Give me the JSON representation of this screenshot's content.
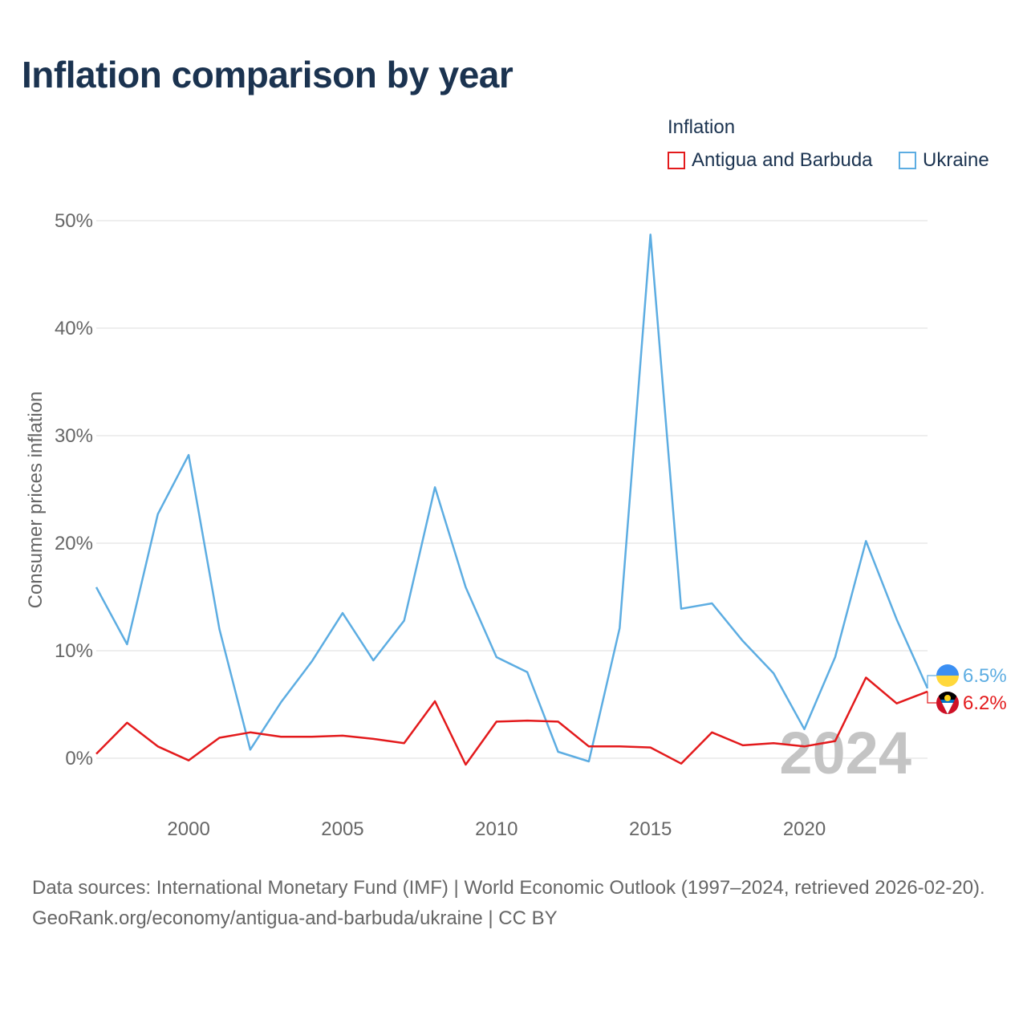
{
  "title": "Inflation comparison by year",
  "legend": {
    "title": "Inflation",
    "items": [
      {
        "label": "Antigua and Barbuda",
        "color": "#e31a1c"
      },
      {
        "label": "Ukraine",
        "color": "#5dade2"
      }
    ]
  },
  "watermark_year": "2024",
  "source": {
    "line1": "Data sources: International Monetary Fund (IMF) | World Economic Outlook (1997–2024, retrieved 2026-02-20).",
    "line2": "GeoRank.org/economy/antigua-and-barbuda/ukraine | CC BY"
  },
  "chart_data": {
    "type": "line",
    "title": "Inflation comparison by year",
    "xlabel": "",
    "ylabel": "Consumer prices inflation",
    "xlim": [
      1997,
      2024
    ],
    "ylim": [
      0,
      50
    ],
    "x_ticks": [
      2000,
      2005,
      2010,
      2015,
      2020
    ],
    "x_tick_labels": [
      "2000",
      "2005",
      "2010",
      "2015",
      "2020"
    ],
    "y_ticks": [
      0,
      10,
      20,
      30,
      40,
      50
    ],
    "y_tick_labels": [
      "0%",
      "10%",
      "20%",
      "30%",
      "40%",
      "50%"
    ],
    "grid": true,
    "x": [
      1997,
      1998,
      1999,
      2000,
      2001,
      2002,
      2003,
      2004,
      2005,
      2006,
      2007,
      2008,
      2009,
      2010,
      2011,
      2012,
      2013,
      2014,
      2015,
      2016,
      2017,
      2018,
      2019,
      2020,
      2021,
      2022,
      2023,
      2024
    ],
    "series": [
      {
        "name": "Antigua and Barbuda",
        "color": "#e31a1c",
        "end_label": "6.2%",
        "values": [
          0.4,
          3.3,
          1.1,
          -0.2,
          1.9,
          2.4,
          2.0,
          2.0,
          2.1,
          1.8,
          1.4,
          5.3,
          -0.6,
          3.4,
          3.5,
          3.4,
          1.1,
          1.1,
          1.0,
          -0.5,
          2.4,
          1.2,
          1.4,
          1.1,
          1.6,
          7.5,
          5.1,
          6.2
        ]
      },
      {
        "name": "Ukraine",
        "color": "#5dade2",
        "end_label": "6.5%",
        "values": [
          15.9,
          10.6,
          22.7,
          28.2,
          12.0,
          0.8,
          5.2,
          9.0,
          13.5,
          9.1,
          12.8,
          25.2,
          15.9,
          9.4,
          8.0,
          0.6,
          -0.3,
          12.1,
          48.7,
          13.9,
          14.4,
          10.9,
          7.9,
          2.7,
          9.4,
          20.2,
          12.9,
          6.5
        ]
      }
    ]
  }
}
